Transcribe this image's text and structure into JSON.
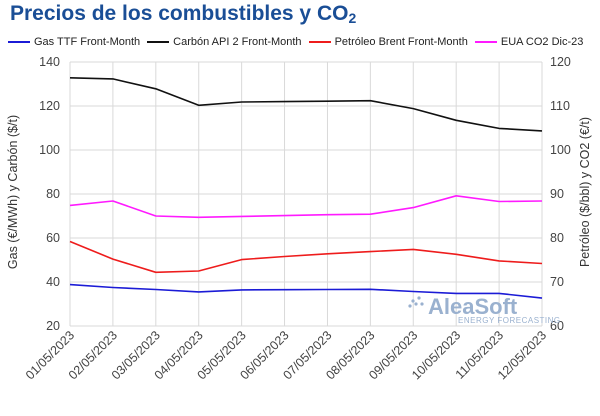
{
  "title_main": "Precios de los combustibles y CO",
  "title_sub": "2",
  "watermark": {
    "brand": "AleaSoft",
    "tagline": "ENERGY FORECASTING"
  },
  "chart_data": {
    "type": "line",
    "x": [
      "01/05/2023",
      "02/05/2023",
      "03/05/2023",
      "04/05/2023",
      "05/05/2023",
      "06/05/2023",
      "07/05/2023",
      "08/05/2023",
      "09/05/2023",
      "10/05/2023",
      "11/05/2023",
      "12/05/2023"
    ],
    "y_left_label": "Gas (€/MWh) y Carbón ($/t)",
    "y_right_label": "Petróleo ($/bbl) y CO2 (€/t)",
    "y_left_range": [
      20,
      140
    ],
    "y_right_range": [
      60,
      120
    ],
    "y_left_ticks": [
      "20",
      "40",
      "60",
      "80",
      "100",
      "120",
      "140"
    ],
    "y_right_ticks": [
      "60",
      "70",
      "80",
      "90",
      "100",
      "110",
      "120"
    ],
    "grid": true,
    "legend_position": "top",
    "series": [
      {
        "name": "Gas TTF Front-Month",
        "axis": "left",
        "color": "#1b1bd6",
        "values": [
          38.8,
          37.5,
          36.6,
          35.5,
          36.4,
          36.5,
          36.6,
          36.7,
          35.7,
          34.8,
          34.8,
          32.7
        ]
      },
      {
        "name": "Carbón API 2 Front-Month",
        "axis": "left",
        "color": "#111111",
        "values": [
          132.8,
          132.3,
          127.8,
          120.3,
          121.8,
          122.0,
          122.2,
          122.4,
          118.8,
          113.5,
          109.8,
          108.7
        ]
      },
      {
        "name": "Petróleo Brent Front-Month",
        "axis": "right",
        "color": "#ee1c1c",
        "values": [
          79.2,
          75.2,
          72.2,
          72.5,
          75.1,
          75.8,
          76.4,
          76.9,
          77.4,
          76.3,
          74.8,
          74.2
        ]
      },
      {
        "name": "EUA CO2 Dic-23",
        "axis": "right",
        "color": "#ff1aff",
        "values": [
          87.4,
          88.4,
          85.0,
          84.7,
          84.9,
          85.1,
          85.3,
          85.4,
          86.9,
          89.6,
          88.3,
          88.4
        ]
      }
    ]
  }
}
